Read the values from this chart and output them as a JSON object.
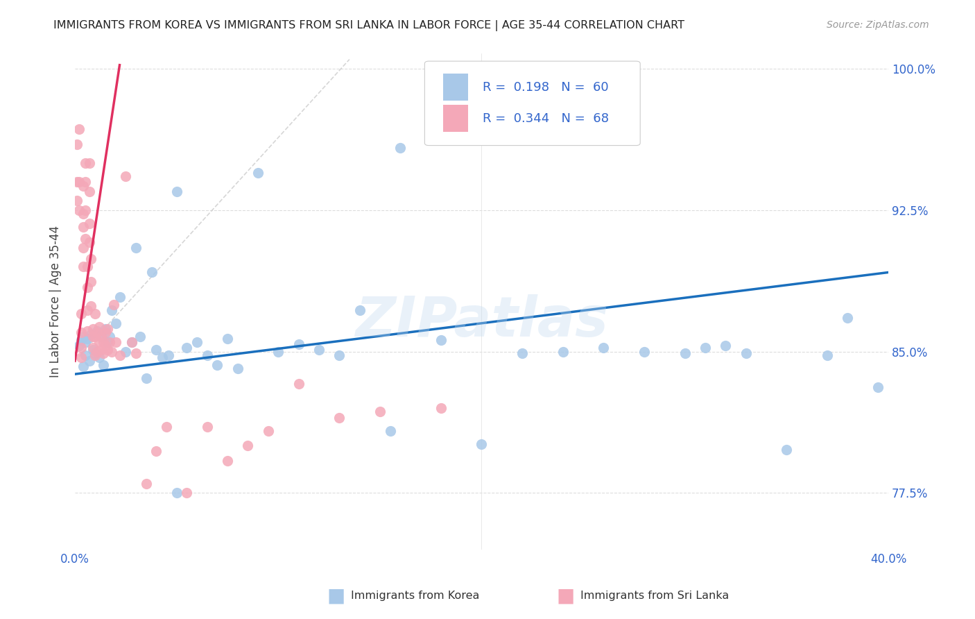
{
  "title": "IMMIGRANTS FROM KOREA VS IMMIGRANTS FROM SRI LANKA IN LABOR FORCE | AGE 35-44 CORRELATION CHART",
  "source": "Source: ZipAtlas.com",
  "xmin": 0.0,
  "xmax": 0.4,
  "ymin": 0.745,
  "ymax": 1.008,
  "korea_R": 0.198,
  "korea_N": 60,
  "srilanka_R": 0.344,
  "srilanka_N": 68,
  "korea_color": "#a8c8e8",
  "srilanka_color": "#f4a8b8",
  "korea_trend_color": "#1a6fbd",
  "srilanka_trend_color": "#e03060",
  "watermark": "ZIPatlas",
  "ylabel": "In Labor Force | Age 35-44",
  "yticks": [
    0.775,
    0.85,
    0.925,
    1.0
  ],
  "ytick_labels": [
    "77.5%",
    "85.0%",
    "92.5%",
    "100.0%"
  ],
  "xticks": [
    0.0,
    0.1,
    0.2,
    0.3,
    0.4
  ],
  "xtick_labels": [
    "0.0%",
    "",
    "",
    "",
    "40.0%"
  ],
  "korea_trend_x0": 0.0,
  "korea_trend_y0": 0.838,
  "korea_trend_x1": 0.4,
  "korea_trend_y1": 0.892,
  "srilanka_trend_x0": 0.0,
  "srilanka_trend_y0": 0.845,
  "srilanka_trend_x1": 0.022,
  "srilanka_trend_y1": 1.002,
  "ref_line_x0": 0.0,
  "ref_line_y0": 0.845,
  "ref_line_x1": 0.135,
  "ref_line_y1": 1.005,
  "korea_points_x": [
    0.002,
    0.003,
    0.004,
    0.004,
    0.005,
    0.005,
    0.006,
    0.007,
    0.008,
    0.009,
    0.01,
    0.011,
    0.012,
    0.013,
    0.014,
    0.015,
    0.016,
    0.017,
    0.018,
    0.02,
    0.022,
    0.025,
    0.028,
    0.03,
    0.032,
    0.035,
    0.038,
    0.04,
    0.043,
    0.046,
    0.05,
    0.06,
    0.065,
    0.07,
    0.075,
    0.08,
    0.09,
    0.1,
    0.11,
    0.12,
    0.13,
    0.14,
    0.155,
    0.16,
    0.18,
    0.2,
    0.22,
    0.24,
    0.26,
    0.28,
    0.3,
    0.31,
    0.32,
    0.33,
    0.35,
    0.37,
    0.38,
    0.395,
    0.05,
    0.055
  ],
  "korea_points_y": [
    0.853,
    0.856,
    0.842,
    0.858,
    0.848,
    0.855,
    0.857,
    0.845,
    0.859,
    0.851,
    0.849,
    0.861,
    0.847,
    0.858,
    0.843,
    0.862,
    0.855,
    0.858,
    0.872,
    0.865,
    0.879,
    0.85,
    0.855,
    0.905,
    0.858,
    0.836,
    0.892,
    0.851,
    0.847,
    0.848,
    0.935,
    0.855,
    0.848,
    0.843,
    0.857,
    0.841,
    0.945,
    0.85,
    0.854,
    0.851,
    0.848,
    0.872,
    0.808,
    0.958,
    0.856,
    0.801,
    0.849,
    0.85,
    0.852,
    0.85,
    0.849,
    0.852,
    0.853,
    0.849,
    0.798,
    0.848,
    0.868,
    0.831,
    0.775,
    0.852
  ],
  "srilanka_points_x": [
    0.001,
    0.001,
    0.001,
    0.002,
    0.002,
    0.002,
    0.003,
    0.003,
    0.003,
    0.003,
    0.004,
    0.004,
    0.004,
    0.004,
    0.004,
    0.005,
    0.005,
    0.005,
    0.005,
    0.006,
    0.006,
    0.006,
    0.006,
    0.007,
    0.007,
    0.007,
    0.007,
    0.008,
    0.008,
    0.008,
    0.009,
    0.009,
    0.009,
    0.01,
    0.01,
    0.01,
    0.011,
    0.011,
    0.012,
    0.012,
    0.013,
    0.013,
    0.014,
    0.014,
    0.015,
    0.015,
    0.016,
    0.016,
    0.017,
    0.018,
    0.019,
    0.02,
    0.022,
    0.025,
    0.028,
    0.03,
    0.035,
    0.04,
    0.045,
    0.055,
    0.065,
    0.075,
    0.085,
    0.095,
    0.11,
    0.13,
    0.15,
    0.18
  ],
  "srilanka_points_y": [
    0.96,
    0.94,
    0.93,
    0.925,
    0.94,
    0.968,
    0.87,
    0.86,
    0.852,
    0.847,
    0.938,
    0.923,
    0.916,
    0.905,
    0.895,
    0.95,
    0.94,
    0.925,
    0.91,
    0.895,
    0.884,
    0.872,
    0.861,
    0.95,
    0.935,
    0.918,
    0.908,
    0.899,
    0.887,
    0.874,
    0.862,
    0.858,
    0.852,
    0.848,
    0.858,
    0.87,
    0.86,
    0.85,
    0.863,
    0.855,
    0.858,
    0.851,
    0.855,
    0.849,
    0.86,
    0.853,
    0.851,
    0.862,
    0.855,
    0.85,
    0.875,
    0.855,
    0.848,
    0.943,
    0.855,
    0.849,
    0.78,
    0.797,
    0.81,
    0.775,
    0.81,
    0.792,
    0.8,
    0.808,
    0.833,
    0.815,
    0.818,
    0.82
  ]
}
